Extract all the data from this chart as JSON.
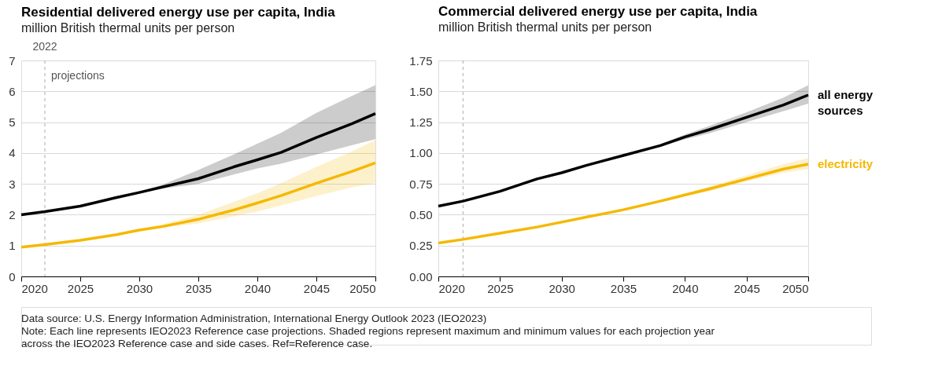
{
  "chart_data": [
    {
      "type": "line",
      "title": "Residential delivered energy use per capita, India",
      "subtitle": "million  British thermal units per person",
      "x": [
        2020,
        2022,
        2025,
        2028,
        2030,
        2032,
        2035,
        2038,
        2040,
        2042,
        2045,
        2048,
        2050
      ],
      "series": [
        {
          "color": "#000000",
          "values": [
            2.0,
            2.1,
            2.28,
            2.55,
            2.72,
            2.9,
            3.17,
            3.55,
            3.78,
            4.02,
            4.5,
            4.95,
            5.28
          ],
          "lower": [
            2.0,
            2.1,
            2.28,
            2.55,
            2.7,
            2.85,
            3.0,
            3.3,
            3.5,
            3.65,
            3.95,
            4.25,
            4.45
          ],
          "upper": [
            2.0,
            2.1,
            2.28,
            2.57,
            2.75,
            2.98,
            3.45,
            3.95,
            4.3,
            4.65,
            5.3,
            5.85,
            6.2
          ]
        },
        {
          "color": "#f5b800",
          "values": [
            0.95,
            1.03,
            1.17,
            1.35,
            1.5,
            1.62,
            1.85,
            2.15,
            2.38,
            2.62,
            3.02,
            3.4,
            3.68
          ],
          "lower": [
            0.95,
            1.03,
            1.17,
            1.35,
            1.48,
            1.58,
            1.72,
            1.95,
            2.1,
            2.3,
            2.6,
            2.88,
            3.02
          ],
          "upper": [
            0.95,
            1.03,
            1.17,
            1.36,
            1.52,
            1.7,
            2.0,
            2.42,
            2.7,
            3.02,
            3.55,
            4.05,
            4.42
          ]
        }
      ],
      "xlim": [
        2020,
        2050
      ],
      "xticks": [
        2020,
        2025,
        2030,
        2035,
        2040,
        2045,
        2050
      ],
      "ylim": [
        0,
        7
      ],
      "yticks": [
        0,
        1,
        2,
        3,
        4,
        5,
        6,
        7
      ],
      "grid": "y",
      "ref_lines": [
        {
          "axis": "x",
          "value": 2022,
          "label": "2022",
          "line_style": "dashed",
          "color": "#aaaaaa"
        }
      ],
      "annotations": [
        {
          "text": "projections",
          "x": 2022,
          "y": 6.5
        },
        "Data source: U.S. Energy Information Administration, International Energy Outlook 2023 (IEO2023)",
        "Note: Each line represents IEO2023 Reference case projections. Shaded regions represent maximum and minimum values for each projection year",
        "across the  IEO2023 Reference case and side cases. Ref=Reference case."
      ]
    },
    {
      "type": "line",
      "title": "Commercial delivered energy use per capita, India",
      "subtitle": "million  British thermal units per person",
      "x": [
        2020,
        2022,
        2025,
        2028,
        2030,
        2032,
        2035,
        2038,
        2040,
        2042,
        2045,
        2048,
        2050
      ],
      "series": [
        {
          "name": "all energy sources",
          "color": "#000000",
          "values": [
            0.57,
            0.61,
            0.69,
            0.79,
            0.84,
            0.9,
            0.98,
            1.06,
            1.13,
            1.19,
            1.29,
            1.39,
            1.47
          ],
          "lower": [
            0.57,
            0.61,
            0.69,
            0.79,
            0.84,
            0.9,
            0.98,
            1.05,
            1.11,
            1.16,
            1.25,
            1.34,
            1.4
          ],
          "upper": [
            0.57,
            0.61,
            0.69,
            0.79,
            0.84,
            0.9,
            0.98,
            1.07,
            1.15,
            1.22,
            1.33,
            1.45,
            1.55
          ]
        },
        {
          "name": "electricity",
          "color": "#f5b800",
          "values": [
            0.27,
            0.3,
            0.35,
            0.4,
            0.44,
            0.48,
            0.54,
            0.61,
            0.66,
            0.71,
            0.79,
            0.87,
            0.91
          ],
          "lower": [
            0.27,
            0.3,
            0.35,
            0.4,
            0.44,
            0.48,
            0.54,
            0.6,
            0.65,
            0.69,
            0.77,
            0.84,
            0.87
          ],
          "upper": [
            0.27,
            0.3,
            0.35,
            0.4,
            0.44,
            0.48,
            0.54,
            0.62,
            0.67,
            0.73,
            0.82,
            0.91,
            0.96
          ]
        }
      ],
      "xlim": [
        2020,
        2050
      ],
      "xticks": [
        2020,
        2025,
        2030,
        2035,
        2040,
        2045,
        2050
      ],
      "ylim": [
        0,
        1.75
      ],
      "yticks": [
        {
          "value": 0,
          "label": "0.00"
        },
        {
          "value": 0.25,
          "label": "0.25"
        },
        {
          "value": 0.5,
          "label": "0.50"
        },
        {
          "value": 0.75,
          "label": "0.75"
        },
        {
          "value": 1,
          "label": "1.00"
        },
        {
          "value": 1.25,
          "label": "1.25"
        },
        {
          "value": 1.5,
          "label": "1.50"
        },
        {
          "value": 1.75,
          "label": "1.75"
        }
      ],
      "grid": "y",
      "ref_lines": [
        {
          "axis": "x",
          "value": 2022,
          "line_style": "dashed",
          "color": "#aaaaaa"
        }
      ]
    }
  ]
}
